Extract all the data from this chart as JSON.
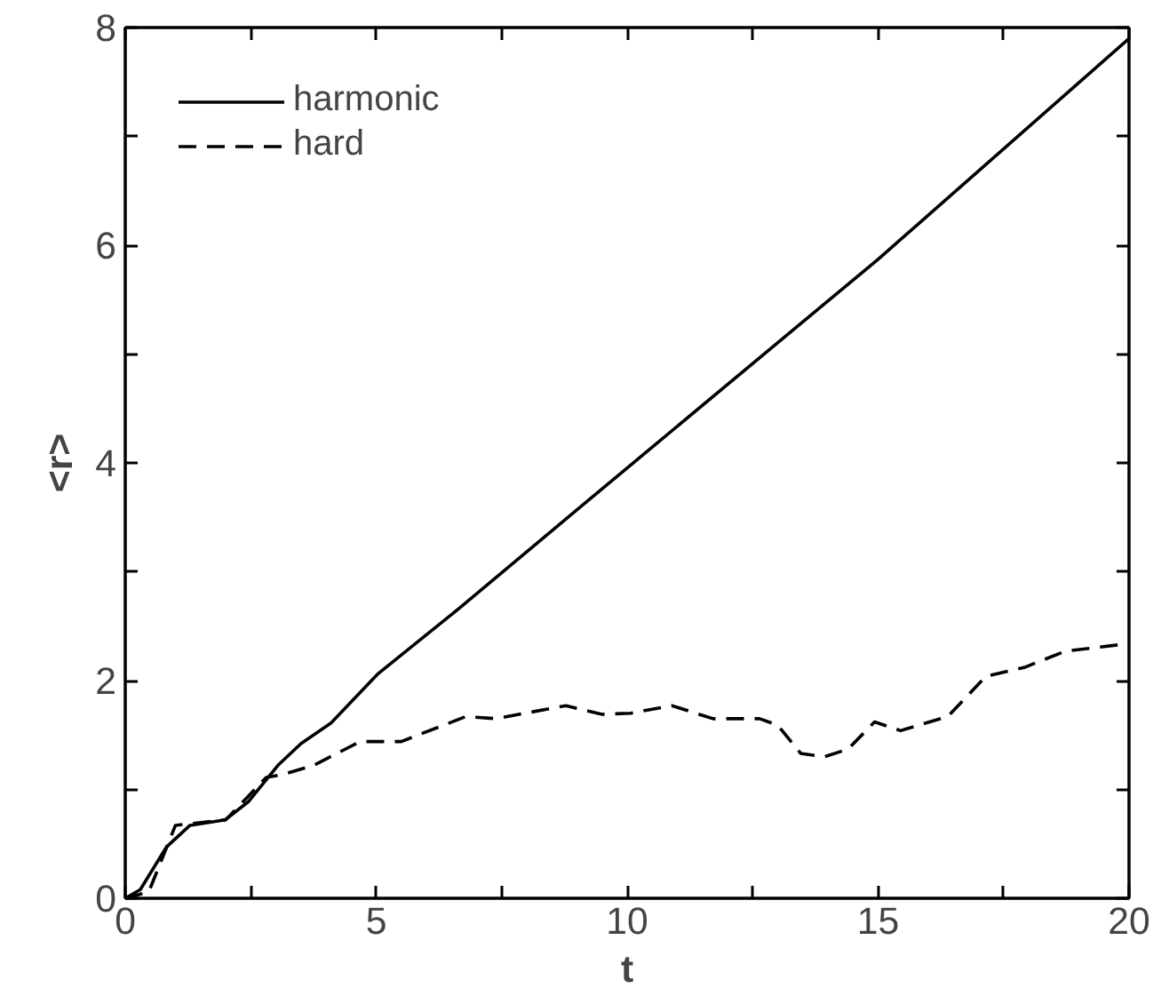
{
  "chart_data": {
    "type": "line",
    "xlabel": "t",
    "ylabel": "<r>",
    "xlim": [
      0,
      20
    ],
    "ylim": [
      0,
      8
    ],
    "xticks": [
      0,
      {
        "value": 2.5,
        "label": null
      },
      5,
      {
        "value": 7.5,
        "label": null
      },
      10,
      {
        "value": 12.5,
        "label": null
      },
      15,
      {
        "value": 17.5,
        "label": null
      },
      20
    ],
    "yticks": [
      0,
      {
        "value": 1,
        "label": null
      },
      2,
      {
        "value": 3,
        "label": null
      },
      4,
      {
        "value": 5,
        "label": null
      },
      6,
      {
        "value": 7,
        "label": null
      },
      8
    ],
    "legend": "top left",
    "grid": false,
    "series": [
      {
        "name": "harmonic",
        "color": "#000000",
        "line_style": "solid",
        "x": [
          0,
          0.3,
          0.82,
          1.29,
          1.99,
          2.46,
          3.04,
          3.5,
          4.1,
          5.03,
          6.67,
          9.13,
          10.2,
          13.46,
          15,
          20
        ],
        "values": [
          0,
          0.08,
          0.47,
          0.67,
          0.72,
          0.89,
          1.22,
          1.42,
          1.61,
          2.06,
          2.67,
          3.62,
          4.03,
          5.28,
          5.87,
          7.9
        ]
      },
      {
        "name": "hard",
        "color": "#000000",
        "line_style": "dashed",
        "x": [
          0,
          0.47,
          1.0,
          2.0,
          2.81,
          3.16,
          3.75,
          4.68,
          5.5,
          6.79,
          7.38,
          8.78,
          9.5,
          10.07,
          10.89,
          11.71,
          12.64,
          13.0,
          13.46,
          13.93,
          14.4,
          14.93,
          15.45,
          16.39,
          17.15,
          17.91,
          18.73,
          20
        ],
        "values": [
          0,
          0.06,
          0.67,
          0.72,
          1.11,
          1.14,
          1.22,
          1.44,
          1.44,
          1.67,
          1.65,
          1.77,
          1.69,
          1.7,
          1.77,
          1.65,
          1.65,
          1.59,
          1.33,
          1.3,
          1.37,
          1.62,
          1.54,
          1.67,
          2.04,
          2.12,
          2.27,
          2.34
        ]
      }
    ]
  }
}
